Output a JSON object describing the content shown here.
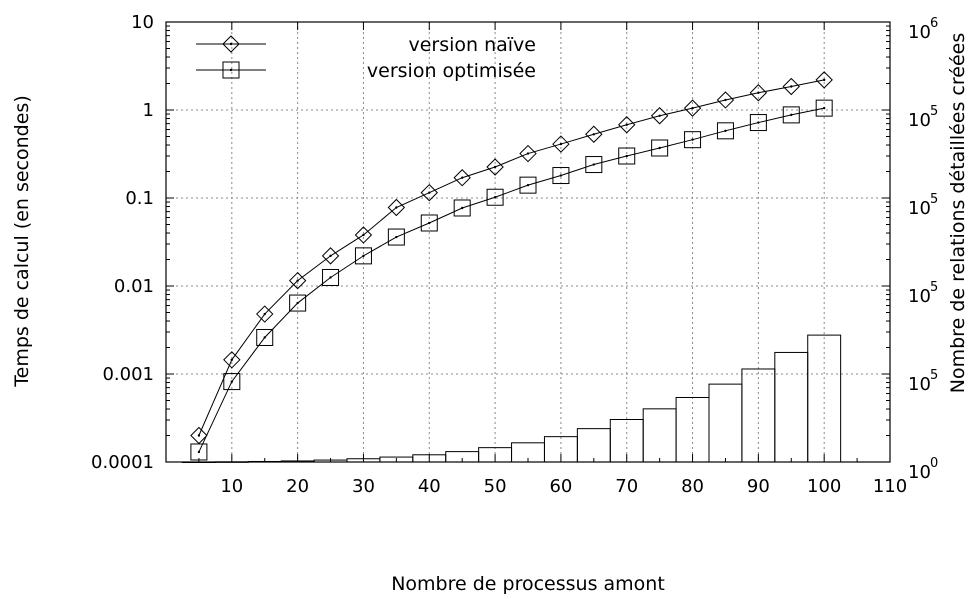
{
  "chart_data": {
    "type": "line",
    "xlabel": "Nombre de processus amont",
    "ylabel": "Temps de calcul (en secondes)",
    "y2label": "Nombre de relations détaillées créées",
    "xlim": [
      0,
      110
    ],
    "xticks": [
      "10",
      "20",
      "30",
      "40",
      "50",
      "60",
      "70",
      "80",
      "90",
      "100",
      "110"
    ],
    "ylim": [
      0.0001,
      10
    ],
    "yscale": "log",
    "yticks": [
      "0.0001",
      "0.001",
      "0.01",
      "0.1",
      "1",
      "10"
    ],
    "y2ticks": [
      {
        "base": "10",
        "exp": "0"
      },
      {
        "base": "10",
        "exp": "5"
      },
      {
        "base": "10",
        "exp": "5"
      },
      {
        "base": "10",
        "exp": "5"
      },
      {
        "base": "10",
        "exp": "5"
      },
      {
        "base": "10",
        "exp": "6"
      }
    ],
    "grid": true,
    "legend_position": "top-left",
    "series": [
      {
        "name": "version naïve",
        "marker": "diamond",
        "x": [
          5,
          10,
          15,
          20,
          25,
          30,
          35,
          40,
          45,
          50,
          55,
          60,
          65,
          70,
          75,
          80,
          85,
          90,
          95,
          100
        ],
        "y": [
          0.0002,
          0.00145,
          0.0048,
          0.0115,
          0.022,
          0.038,
          0.078,
          0.115,
          0.17,
          0.225,
          0.32,
          0.41,
          0.53,
          0.68,
          0.86,
          1.05,
          1.3,
          1.57,
          1.85,
          2.2
        ]
      },
      {
        "name": "version optimisée",
        "marker": "square",
        "x": [
          5,
          10,
          15,
          20,
          25,
          30,
          35,
          40,
          45,
          50,
          55,
          60,
          65,
          70,
          75,
          80,
          85,
          90,
          95,
          100
        ],
        "y": [
          0.00013,
          0.00082,
          0.0026,
          0.0064,
          0.0125,
          0.022,
          0.036,
          0.052,
          0.077,
          0.102,
          0.14,
          0.18,
          0.24,
          0.3,
          0.37,
          0.46,
          0.58,
          0.72,
          0.88,
          1.05
        ]
      }
    ],
    "bars": {
      "x": [
        5,
        10,
        15,
        20,
        25,
        30,
        35,
        40,
        45,
        50,
        55,
        60,
        65,
        70,
        75,
        80,
        85,
        90,
        95,
        100
      ],
      "relative_height": [
        0.0,
        0.002,
        0.006,
        0.012,
        0.022,
        0.037,
        0.056,
        0.082,
        0.118,
        0.163,
        0.218,
        0.288,
        0.379,
        0.483,
        0.604,
        0.733,
        0.885,
        1.057,
        1.245,
        1.442
      ],
      "note": "values in fraction of a left-axis decade"
    }
  }
}
